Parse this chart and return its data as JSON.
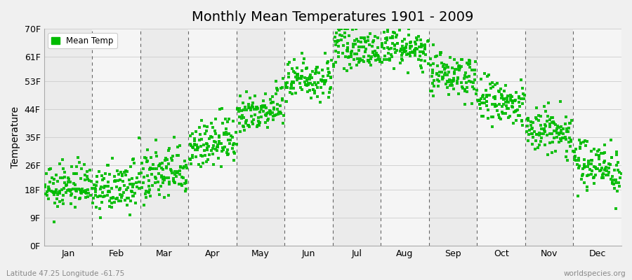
{
  "title": "Monthly Mean Temperatures 1901 - 2009",
  "ylabel": "Temperature",
  "subtitle_left": "Latitude 47.25 Longitude -61.75",
  "subtitle_right": "worldspecies.org",
  "ytick_labels": [
    "0F",
    "9F",
    "18F",
    "26F",
    "35F",
    "44F",
    "53F",
    "61F",
    "70F"
  ],
  "ytick_values": [
    0,
    9,
    18,
    26,
    35,
    44,
    53,
    61,
    70
  ],
  "month_labels": [
    "Jan",
    "Feb",
    "Mar",
    "Apr",
    "May",
    "Jun",
    "Jul",
    "Aug",
    "Sep",
    "Oct",
    "Nov",
    "Dec"
  ],
  "dot_color": "#00bb00",
  "background_color": "#f0f0f0",
  "plot_bg_color_light": "#f0f0f0",
  "plot_bg_color_dark": "#e0e0e0",
  "legend_label": "Mean Temp",
  "n_years": 109,
  "monthly_means": [
    19.0,
    18.5,
    23.0,
    33.0,
    44.0,
    54.0,
    63.5,
    63.5,
    55.0,
    46.0,
    37.0,
    26.0
  ],
  "monthly_stds": [
    3.5,
    3.8,
    4.5,
    4.0,
    3.5,
    3.5,
    3.0,
    2.8,
    3.5,
    4.0,
    4.0,
    4.0
  ],
  "ylim": [
    0,
    70
  ],
  "stripe_colors": [
    "#ebebeb",
    "#f5f5f5"
  ],
  "title_fontsize": 14,
  "axis_fontsize": 9,
  "ylabel_fontsize": 10
}
